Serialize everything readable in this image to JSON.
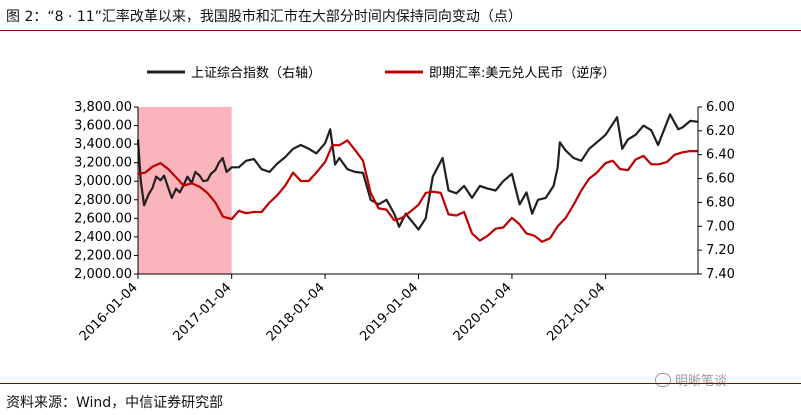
{
  "figure": {
    "title": "图 2：“8 · 11”汇率改革以来，我国股市和汇市在大部分时间内保持同向变动（点）",
    "source": "资料来源：Wind，中信证券研究部",
    "watermark": "明晰笔谈"
  },
  "chart_data": {
    "type": "line",
    "legend_placement": "top",
    "grid": false,
    "x_tick_labels": [
      "2016-01-04",
      "2017-01-04",
      "2018-01-04",
      "2019-01-04",
      "2020-01-04",
      "2021-01-04"
    ],
    "left_axis": {
      "ylim": [
        2000,
        3800
      ],
      "ticks": [
        "2,000.00",
        "2,200.00",
        "2,400.00",
        "2,600.00",
        "2,800.00",
        "3,000.00",
        "3,200.00",
        "3,400.00",
        "3,600.00",
        "3,800.00"
      ]
    },
    "right_axis": {
      "ylim": [
        6.0,
        7.4
      ],
      "inverted": true,
      "ticks": [
        "6.00",
        "6.20",
        "6.40",
        "6.60",
        "6.80",
        "7.00",
        "7.20",
        "7.40"
      ]
    },
    "highlight_region": {
      "x_start": "2016-01-04",
      "x_end": "2017-01-04",
      "color": "#f9b4bc"
    },
    "series": [
      {
        "name": "上证综合指数（右轴）",
        "axis": "left",
        "color": "#231f20",
        "x": [
          "2016-01-04",
          "2016-01-15",
          "2016-01-28",
          "2016-02-15",
          "2016-03-01",
          "2016-03-15",
          "2016-04-01",
          "2016-04-15",
          "2016-05-01",
          "2016-05-15",
          "2016-06-01",
          "2016-06-15",
          "2016-07-01",
          "2016-07-15",
          "2016-08-01",
          "2016-08-15",
          "2016-09-01",
          "2016-09-15",
          "2016-10-01",
          "2016-10-15",
          "2016-11-01",
          "2016-11-15",
          "2016-11-30",
          "2016-12-15",
          "2017-01-04",
          "2017-02-01",
          "2017-03-01",
          "2017-04-01",
          "2017-05-01",
          "2017-06-01",
          "2017-07-01",
          "2017-08-01",
          "2017-09-01",
          "2017-10-01",
          "2017-11-01",
          "2017-12-01",
          "2018-01-04",
          "2018-01-24",
          "2018-02-12",
          "2018-03-01",
          "2018-04-01",
          "2018-05-01",
          "2018-06-01",
          "2018-07-01",
          "2018-08-01",
          "2018-09-01",
          "2018-10-01",
          "2018-10-20",
          "2018-11-15",
          "2019-01-04",
          "2019-02-01",
          "2019-03-01",
          "2019-04-08",
          "2019-05-01",
          "2019-06-01",
          "2019-07-01",
          "2019-08-01",
          "2019-09-01",
          "2019-10-01",
          "2019-11-01",
          "2019-12-01",
          "2020-01-04",
          "2020-02-03",
          "2020-03-01",
          "2020-03-23",
          "2020-04-15",
          "2020-05-15",
          "2020-06-15",
          "2020-07-01",
          "2020-07-09",
          "2020-08-01",
          "2020-09-01",
          "2020-10-01",
          "2020-11-01",
          "2020-12-01",
          "2021-01-04",
          "2021-02-18",
          "2021-03-10",
          "2021-04-01",
          "2021-05-01",
          "2021-06-01",
          "2021-07-01",
          "2021-07-28",
          "2021-09-13",
          "2021-10-15",
          "2021-11-01",
          "2021-12-01",
          "2021-12-31"
        ],
        "values": [
          3450,
          3000,
          2740,
          2860,
          2930,
          3050,
          3010,
          3060,
          2930,
          2820,
          2920,
          2880,
          2960,
          3050,
          2980,
          3100,
          3060,
          3000,
          3010,
          3080,
          3120,
          3200,
          3250,
          3100,
          3150,
          3150,
          3220,
          3240,
          3130,
          3100,
          3190,
          3260,
          3350,
          3390,
          3350,
          3300,
          3410,
          3560,
          3180,
          3250,
          3130,
          3100,
          3090,
          2800,
          2750,
          2800,
          2650,
          2510,
          2650,
          2480,
          2600,
          3050,
          3250,
          2900,
          2870,
          2950,
          2820,
          2950,
          2920,
          2900,
          3000,
          3080,
          2750,
          2880,
          2650,
          2800,
          2820,
          2950,
          3150,
          3420,
          3330,
          3250,
          3220,
          3350,
          3420,
          3500,
          3690,
          3350,
          3450,
          3500,
          3600,
          3550,
          3390,
          3720,
          3560,
          3580,
          3650,
          3640
        ]
      },
      {
        "name": "即期汇率:美元兑人民币（逆序）",
        "axis": "right",
        "color": "#c00000",
        "x": [
          "2016-01-04",
          "2016-02-01",
          "2016-03-01",
          "2016-04-01",
          "2016-05-01",
          "2016-06-01",
          "2016-07-01",
          "2016-08-01",
          "2016-09-01",
          "2016-10-01",
          "2016-11-01",
          "2016-12-01",
          "2017-01-04",
          "2017-02-01",
          "2017-03-01",
          "2017-04-01",
          "2017-05-01",
          "2017-06-01",
          "2017-07-01",
          "2017-08-01",
          "2017-09-01",
          "2017-10-01",
          "2017-11-01",
          "2017-12-01",
          "2018-01-04",
          "2018-02-01",
          "2018-03-01",
          "2018-04-01",
          "2018-05-01",
          "2018-06-01",
          "2018-07-01",
          "2018-08-01",
          "2018-09-01",
          "2018-10-01",
          "2018-11-01",
          "2018-12-01",
          "2019-01-04",
          "2019-02-01",
          "2019-03-01",
          "2019-04-01",
          "2019-05-01",
          "2019-06-01",
          "2019-07-01",
          "2019-08-01",
          "2019-09-01",
          "2019-10-01",
          "2019-11-01",
          "2019-12-01",
          "2020-01-04",
          "2020-02-01",
          "2020-03-01",
          "2020-04-01",
          "2020-05-01",
          "2020-06-01",
          "2020-07-01",
          "2020-08-01",
          "2020-09-01",
          "2020-10-01",
          "2020-11-01",
          "2020-12-01",
          "2021-01-04",
          "2021-02-01",
          "2021-03-01",
          "2021-04-01",
          "2021-05-01",
          "2021-06-01",
          "2021-07-01",
          "2021-08-01",
          "2021-09-01",
          "2021-10-01",
          "2021-11-01",
          "2021-12-01",
          "2021-12-31"
        ],
        "values": [
          6.56,
          6.55,
          6.5,
          6.47,
          6.52,
          6.59,
          6.66,
          6.64,
          6.67,
          6.72,
          6.8,
          6.92,
          6.94,
          6.87,
          6.89,
          6.88,
          6.88,
          6.8,
          6.74,
          6.66,
          6.55,
          6.62,
          6.62,
          6.55,
          6.46,
          6.32,
          6.32,
          6.28,
          6.36,
          6.45,
          6.72,
          6.85,
          6.86,
          6.95,
          6.93,
          6.88,
          6.82,
          6.72,
          6.71,
          6.72,
          6.9,
          6.91,
          6.88,
          7.06,
          7.12,
          7.08,
          7.02,
          7.01,
          6.93,
          6.98,
          7.06,
          7.08,
          7.13,
          7.1,
          7.0,
          6.93,
          6.82,
          6.7,
          6.6,
          6.55,
          6.47,
          6.45,
          6.52,
          6.53,
          6.44,
          6.41,
          6.48,
          6.48,
          6.46,
          6.4,
          6.38,
          6.37,
          6.37
        ]
      }
    ]
  }
}
